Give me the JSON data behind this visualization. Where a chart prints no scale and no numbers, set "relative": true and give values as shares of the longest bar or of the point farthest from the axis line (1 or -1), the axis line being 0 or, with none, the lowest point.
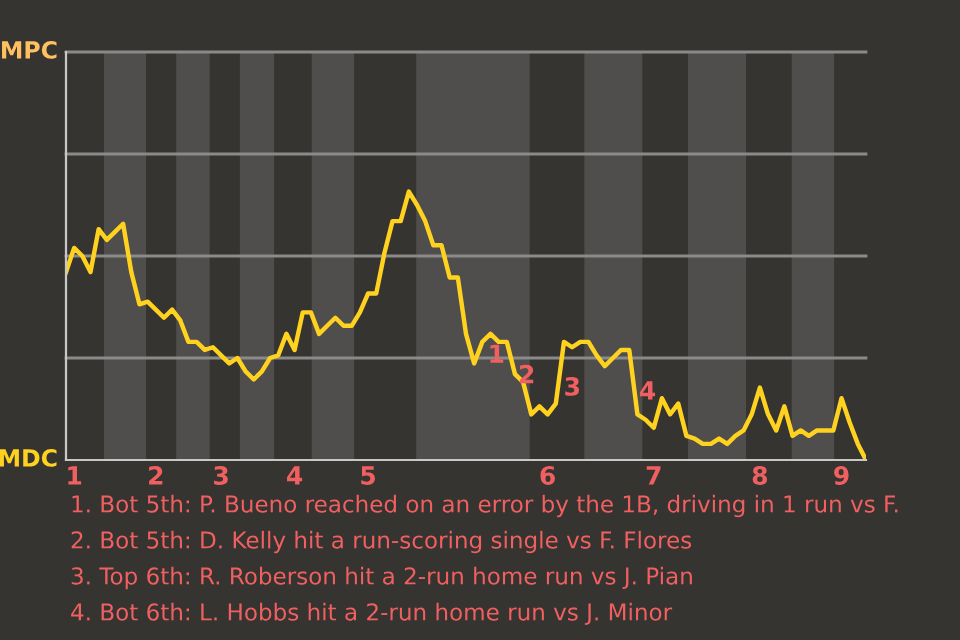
{
  "chart_data": {
    "type": "line",
    "categories": [
      null,
      "1",
      null,
      null,
      null,
      null,
      null,
      null,
      null,
      null,
      null,
      "2",
      null,
      null,
      null,
      null,
      null,
      null,
      null,
      "3",
      null,
      null,
      null,
      null,
      null,
      null,
      null,
      null,
      "4",
      null,
      null,
      null,
      null,
      null,
      null,
      null,
      null,
      "5",
      null,
      null,
      null,
      null,
      null,
      null,
      null,
      null,
      null,
      null,
      null,
      null,
      null,
      null,
      null,
      null,
      null,
      null,
      null,
      null,
      null,
      "6",
      null,
      null,
      null,
      null,
      null,
      null,
      null,
      null,
      null,
      null,
      null,
      null,
      "7",
      null,
      null,
      null,
      null,
      null,
      null,
      null,
      null,
      null,
      null,
      null,
      null,
      "8",
      null,
      null,
      null,
      null,
      null,
      null,
      null,
      null,
      null,
      "9",
      null,
      null,
      null
    ],
    "relative": true,
    "series": [
      {
        "color": "#ffd21f",
        "values": [
          0.7,
          0.79,
          0.76,
          0.7,
          0.86,
          0.82,
          0.85,
          0.88,
          0.7,
          0.58,
          0.59,
          0.56,
          0.53,
          0.56,
          0.52,
          0.44,
          0.44,
          0.41,
          0.42,
          0.39,
          0.36,
          0.38,
          0.33,
          0.3,
          0.33,
          0.38,
          0.39,
          0.47,
          0.41,
          0.55,
          0.55,
          0.47,
          0.5,
          0.53,
          0.5,
          0.5,
          0.55,
          0.62,
          0.62,
          0.77,
          0.89,
          0.89,
          1,
          0.95,
          0.89,
          0.8,
          0.8,
          0.68,
          0.68,
          0.47,
          0.36,
          0.44,
          0.47,
          0.44,
          0.44,
          0.32,
          0.29,
          0.17,
          0.2,
          0.17,
          0.21,
          0.44,
          0.42,
          0.44,
          0.44,
          0.39,
          0.35,
          0.38,
          0.41,
          0.41,
          0.17,
          0.15,
          0.12,
          0.23,
          0.17,
          0.21,
          0.09,
          0.08,
          0.06,
          0.06,
          0.08,
          0.06,
          0.09,
          0.11,
          0.17,
          0.27,
          0.17,
          0.11,
          0.2,
          0.09,
          0.11,
          0.09,
          0.11,
          0.11,
          0.11,
          0.23,
          0.14,
          0.06,
          0
        ]
      }
    ],
    "ref_lines": [
      {
        "axis": "y",
        "value": 0.38,
        "color": "#8a8a8a"
      },
      {
        "axis": "y",
        "value": 0.76,
        "color": "#8a8a8a"
      },
      {
        "axis": "y",
        "value": 1.14,
        "color": "#8a8a8a"
      },
      {
        "axis": "y",
        "value": 1.52,
        "color": "#8a8a8a"
      }
    ],
    "annotations": [
      "MPC",
      "MDC",
      "1",
      "2",
      "3",
      "4",
      "1. Bot 5th: P. Bueno reached on an error by the 1B, driving in 1 run vs F.",
      "2. Bot 5th: D. Kelly hit a run-scoring single vs F. Flores",
      "3. Top 6th: R. Roberson hit a 2-run home run vs J. Pian",
      "4. Bot 6th: L. Hobbs hit a 2-run home run vs J. Minor"
    ]
  }
}
